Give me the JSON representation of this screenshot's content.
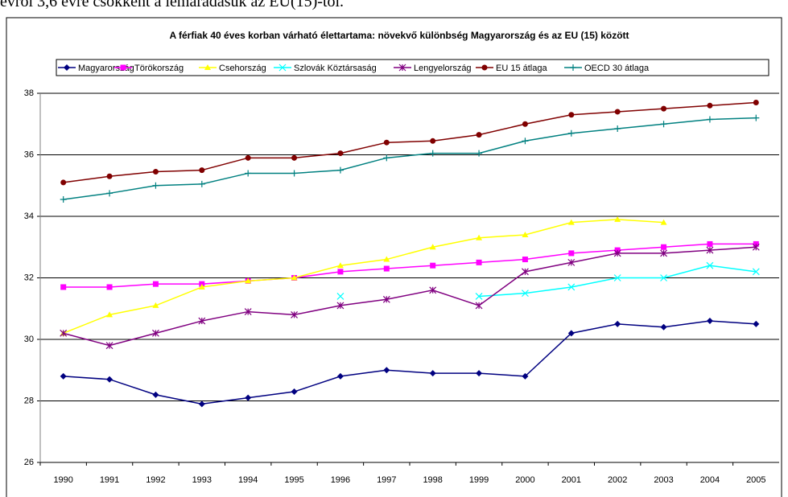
{
  "document_text": "évről 3,6 évre csökkent a lemaradásuk az EU(15)-től.",
  "chart_data": {
    "type": "line",
    "title": "A férfiak 40 éves korban várható élettartama: növekvő különbség Magyarország és az EU (15) között",
    "categories": [
      "1990",
      "1991",
      "1992",
      "1993",
      "1994",
      "1995",
      "1996",
      "1997",
      "1998",
      "1999",
      "2000",
      "2001",
      "2002",
      "2003",
      "2004",
      "2005"
    ],
    "ylim": [
      26,
      38
    ],
    "yticks": [
      26,
      28,
      30,
      32,
      34,
      36,
      38
    ],
    "grid": true,
    "legend": "top",
    "series": [
      {
        "name": "Magyarország",
        "color": "#000080",
        "marker": "diamond",
        "values": [
          28.8,
          28.7,
          28.2,
          27.9,
          28.1,
          28.3,
          28.8,
          29.0,
          28.9,
          28.9,
          28.8,
          30.2,
          30.5,
          30.4,
          30.6,
          30.5
        ]
      },
      {
        "name": "Törökország",
        "color": "#FF00FF",
        "marker": "square",
        "values": [
          31.7,
          31.7,
          31.8,
          31.8,
          31.9,
          32.0,
          32.2,
          32.3,
          32.4,
          32.5,
          32.6,
          32.8,
          32.9,
          33.0,
          33.1,
          33.1
        ]
      },
      {
        "name": "Csehország",
        "color": "#FFFF00",
        "marker": "triangle",
        "values": [
          30.2,
          30.8,
          31.1,
          31.7,
          31.9,
          32.0,
          32.4,
          32.6,
          33.0,
          33.3,
          33.4,
          33.8,
          33.9,
          33.8,
          null,
          null
        ]
      },
      {
        "name": "Szlovák Köztársaság",
        "color": "#00FFFF",
        "marker": "x",
        "values": [
          null,
          null,
          null,
          null,
          null,
          null,
          31.4,
          null,
          null,
          31.4,
          31.5,
          31.7,
          32.0,
          32.0,
          32.4,
          32.2
        ]
      },
      {
        "name": "Lengyelország",
        "color": "#800080",
        "marker": "star",
        "values": [
          30.2,
          29.8,
          30.2,
          30.6,
          30.9,
          30.8,
          31.1,
          31.3,
          31.6,
          31.1,
          32.2,
          32.5,
          32.8,
          32.8,
          32.9,
          33.0
        ]
      },
      {
        "name": "EU 15 átlaga",
        "color": "#800000",
        "marker": "circle",
        "values": [
          35.1,
          35.3,
          35.45,
          35.5,
          35.9,
          35.9,
          36.05,
          36.4,
          36.45,
          36.65,
          37.0,
          37.3,
          37.4,
          37.5,
          37.6,
          37.7
        ]
      },
      {
        "name": "OECD 30 átlaga",
        "color": "#008080",
        "marker": "plus",
        "values": [
          34.55,
          34.75,
          35.0,
          35.05,
          35.4,
          35.4,
          35.5,
          35.9,
          36.05,
          36.05,
          36.45,
          36.7,
          36.85,
          37.0,
          37.15,
          37.2
        ]
      }
    ]
  }
}
